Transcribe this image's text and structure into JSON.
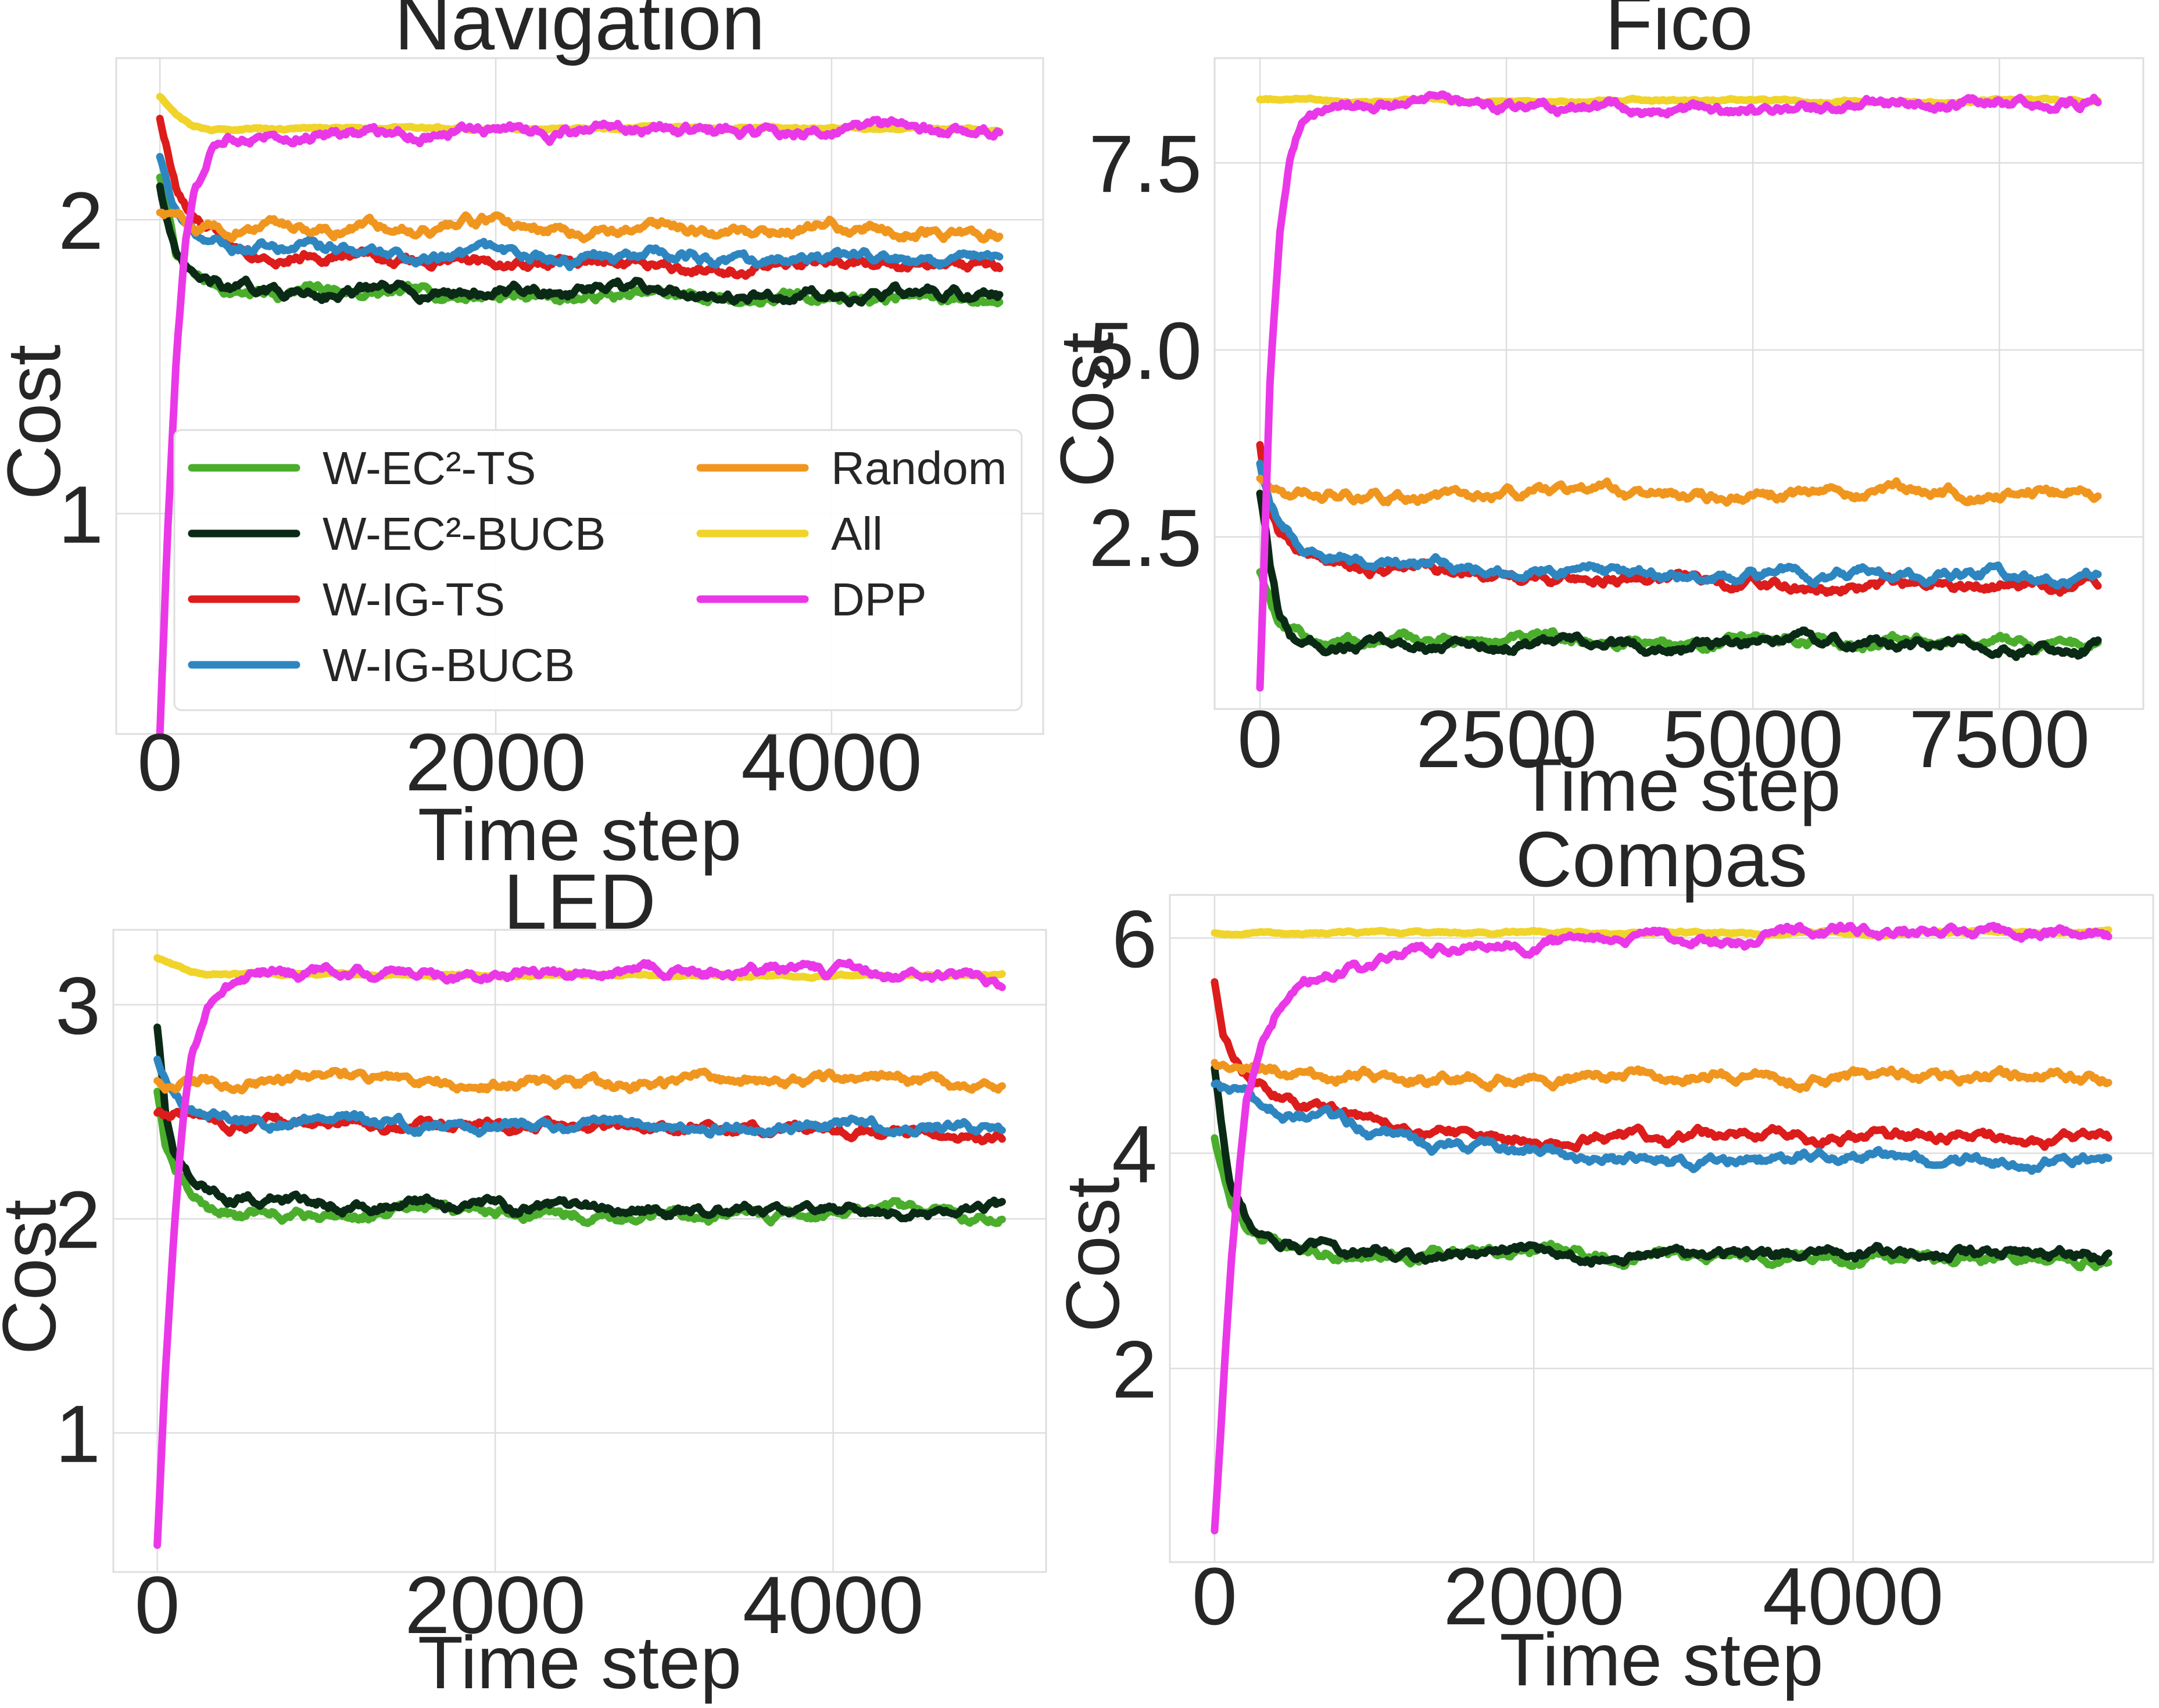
{
  "chart_data": [
    {
      "type": "line",
      "title": "Navigation",
      "xlabel": "Time step",
      "ylabel": "Cost",
      "xlim": [
        -260,
        5260
      ],
      "ylim": [
        0.25,
        2.55
      ],
      "xticks": [
        0,
        2000,
        4000
      ],
      "xtick_labels": [
        "0",
        "2000",
        "4000"
      ],
      "yticks": [
        1,
        2
      ],
      "ytick_labels": [
        "1",
        "2"
      ],
      "grid": true,
      "series": [
        {
          "name": "W-EC²-TS",
          "x": [
            0,
            100,
            200,
            400,
            700,
            1000,
            1500,
            2000,
            2500,
            3000,
            3500,
            4000,
            4500,
            5000
          ],
          "values": [
            2.15,
            1.88,
            1.8,
            1.76,
            1.75,
            1.76,
            1.74,
            1.75,
            1.74,
            1.74,
            1.73,
            1.74,
            1.74,
            1.73
          ]
        },
        {
          "name": "W-EC²-BUCB",
          "x": [
            0,
            100,
            200,
            400,
            700,
            1000,
            1500,
            2000,
            2500,
            3000,
            3500,
            4000,
            4500,
            5000
          ],
          "values": [
            2.12,
            1.86,
            1.79,
            1.76,
            1.75,
            1.76,
            1.75,
            1.76,
            1.75,
            1.76,
            1.74,
            1.75,
            1.75,
            1.73
          ]
        },
        {
          "name": "W-IG-TS",
          "x": [
            0,
            100,
            200,
            400,
            700,
            1000,
            1500,
            2000,
            2500,
            3000,
            3500,
            4000,
            4500,
            5000
          ],
          "values": [
            2.35,
            2.1,
            1.99,
            1.92,
            1.89,
            1.89,
            1.86,
            1.86,
            1.85,
            1.86,
            1.84,
            1.85,
            1.84,
            1.83
          ]
        },
        {
          "name": "W-IG-BUCB",
          "x": [
            0,
            100,
            200,
            400,
            700,
            1000,
            1500,
            2000,
            2500,
            3000,
            3500,
            4000,
            4500,
            5000
          ],
          "values": [
            2.22,
            2.04,
            1.96,
            1.92,
            1.9,
            1.9,
            1.87,
            1.87,
            1.86,
            1.88,
            1.85,
            1.86,
            1.86,
            1.85
          ]
        },
        {
          "name": "Random",
          "x": [
            0,
            100,
            200,
            400,
            700,
            1000,
            1500,
            2000,
            2500,
            3000,
            3500,
            4000,
            4500,
            5000
          ],
          "values": [
            2.03,
            2.0,
            1.98,
            1.97,
            1.98,
            1.97,
            1.98,
            1.99,
            1.97,
            1.98,
            1.96,
            1.98,
            1.97,
            1.95
          ]
        },
        {
          "name": "All",
          "x": [
            0,
            100,
            200,
            300,
            500,
            700,
            1000,
            2000,
            3000,
            4000,
            5000
          ],
          "values": [
            2.42,
            2.36,
            2.32,
            2.31,
            2.31,
            2.31,
            2.31,
            2.31,
            2.31,
            2.31,
            2.31
          ]
        },
        {
          "name": "DPP",
          "x": [
            0,
            50,
            100,
            150,
            200,
            300,
            400,
            500,
            700,
            1000,
            1500,
            2000,
            3000,
            4000,
            5000
          ],
          "values": [
            0.25,
            1.0,
            1.55,
            1.9,
            2.08,
            2.22,
            2.27,
            2.29,
            2.3,
            2.31,
            2.3,
            2.3,
            2.3,
            2.3,
            2.3
          ]
        }
      ],
      "legend": {
        "position": "lower-left",
        "columns": 2,
        "entries": [
          "W-EC²-TS",
          "W-EC²-BUCB",
          "W-IG-TS",
          "W-IG-BUCB",
          "Random",
          "All",
          "DPP"
        ]
      }
    },
    {
      "type": "line",
      "title": "Fico",
      "xlabel": "Time step",
      "ylabel": "Cost",
      "xlim": [
        -460,
        8960
      ],
      "ylim": [
        0.2,
        8.9
      ],
      "xticks": [
        0,
        2500,
        5000,
        7500
      ],
      "xtick_labels": [
        "0",
        "2500",
        "5000",
        "7500"
      ],
      "yticks": [
        2.5,
        5.0,
        7.5
      ],
      "ytick_labels": [
        "2.5",
        "5.0",
        "7.5"
      ],
      "grid": true,
      "series": [
        {
          "name": "W-EC²-TS",
          "x": [
            0,
            100,
            200,
            300,
            500,
            800,
            1500,
            2500,
            3500,
            4500,
            5500,
            6500,
            7500,
            8500
          ],
          "values": [
            2.05,
            1.7,
            1.3,
            1.17,
            1.12,
            1.1,
            1.1,
            1.1,
            1.09,
            1.08,
            1.1,
            1.12,
            1.1,
            1.1
          ]
        },
        {
          "name": "W-EC²-BUCB",
          "x": [
            0,
            100,
            200,
            300,
            500,
            800,
            1500,
            2500,
            3500,
            4500,
            5500,
            6500,
            7500,
            8500
          ],
          "values": [
            3.1,
            2.1,
            1.4,
            1.15,
            1.08,
            1.06,
            1.05,
            1.06,
            1.04,
            1.05,
            1.05,
            1.07,
            1.05,
            1.05
          ]
        },
        {
          "name": "W-IG-TS",
          "x": [
            0,
            100,
            200,
            400,
            700,
            1000,
            1500,
            2500,
            3500,
            4500,
            5500,
            6500,
            7500,
            8500
          ],
          "values": [
            3.75,
            2.9,
            2.55,
            2.3,
            2.15,
            2.1,
            2.05,
            1.95,
            1.95,
            1.9,
            1.85,
            1.85,
            1.85,
            1.85
          ]
        },
        {
          "name": "W-IG-BUCB",
          "x": [
            0,
            100,
            200,
            400,
            700,
            1000,
            1500,
            2500,
            3500,
            4500,
            5500,
            6500,
            7500,
            8500
          ],
          "values": [
            3.5,
            2.9,
            2.6,
            2.35,
            2.3,
            2.2,
            2.15,
            2.1,
            2.05,
            2.0,
            2.0,
            2.0,
            1.98,
            1.97
          ]
        },
        {
          "name": "Random",
          "x": [
            0,
            100,
            200,
            400,
            1000,
            2000,
            3000,
            4000,
            5000,
            6000,
            7000,
            8000,
            8500
          ],
          "values": [
            3.3,
            3.2,
            3.1,
            3.05,
            3.05,
            3.05,
            3.1,
            3.05,
            3.05,
            3.1,
            3.1,
            3.1,
            3.1
          ]
        },
        {
          "name": "All",
          "x": [
            0,
            1000,
            2000,
            3000,
            4000,
            5000,
            6000,
            7000,
            8000,
            8500
          ],
          "values": [
            8.35,
            8.33,
            8.33,
            8.33,
            8.33,
            8.33,
            8.33,
            8.33,
            8.33,
            8.33
          ]
        },
        {
          "name": "DPP",
          "x": [
            0,
            50,
            100,
            200,
            300,
            400,
            500,
            600,
            800,
            1200,
            2000,
            3000,
            4000,
            5000,
            6000,
            6300,
            7000,
            8000,
            8500
          ],
          "values": [
            0.5,
            2.5,
            4.5,
            6.6,
            7.6,
            8.05,
            8.2,
            8.25,
            8.27,
            8.28,
            8.25,
            8.23,
            8.2,
            8.22,
            8.22,
            8.3,
            8.31,
            8.31,
            8.31
          ]
        }
      ]
    },
    {
      "type": "line",
      "title": "LED",
      "xlabel": "Time step",
      "ylabel": "Cost",
      "xlim": [
        -260,
        5260
      ],
      "ylim": [
        0.35,
        3.35
      ],
      "xticks": [
        0,
        2000,
        4000
      ],
      "xtick_labels": [
        "0",
        "2000",
        "4000"
      ],
      "yticks": [
        1,
        2,
        3
      ],
      "ytick_labels": [
        "1",
        "2",
        "3"
      ],
      "grid": true,
      "series": [
        {
          "name": "W-EC²-TS",
          "x": [
            0,
            50,
            100,
            200,
            300,
            500,
            800,
            1200,
            2000,
            3000,
            4000,
            5000
          ],
          "values": [
            2.6,
            2.35,
            2.22,
            2.1,
            2.05,
            2.02,
            2.02,
            2.03,
            2.03,
            2.02,
            2.02,
            2.01
          ]
        },
        {
          "name": "W-EC²-BUCB",
          "x": [
            0,
            50,
            100,
            200,
            300,
            500,
            800,
            1200,
            2000,
            3000,
            4000,
            5000
          ],
          "values": [
            2.9,
            2.5,
            2.3,
            2.17,
            2.12,
            2.1,
            2.09,
            2.08,
            2.05,
            2.03,
            2.03,
            2.03
          ]
        },
        {
          "name": "W-IG-TS",
          "x": [
            0,
            200,
            500,
            1000,
            2000,
            3000,
            4000,
            5000
          ],
          "values": [
            2.5,
            2.48,
            2.45,
            2.42,
            2.43,
            2.42,
            2.42,
            2.4
          ]
        },
        {
          "name": "W-IG-BUCB",
          "x": [
            0,
            100,
            200,
            500,
            1000,
            2000,
            3000,
            4000,
            5000
          ],
          "values": [
            2.75,
            2.6,
            2.52,
            2.47,
            2.44,
            2.43,
            2.43,
            2.44,
            2.41
          ]
        },
        {
          "name": "Random",
          "x": [
            0,
            500,
            1000,
            2000,
            3000,
            4000,
            5000
          ],
          "values": [
            2.65,
            2.64,
            2.66,
            2.64,
            2.63,
            2.65,
            2.63
          ]
        },
        {
          "name": "All",
          "x": [
            0,
            100,
            200,
            300,
            500,
            1000,
            2000,
            3000,
            4000,
            5000
          ],
          "values": [
            3.22,
            3.18,
            3.15,
            3.14,
            3.14,
            3.14,
            3.14,
            3.14,
            3.14,
            3.14
          ]
        },
        {
          "name": "DPP",
          "x": [
            0,
            50,
            100,
            150,
            200,
            300,
            400,
            600,
            800,
            1000,
            2000,
            3000,
            4000,
            5000
          ],
          "values": [
            0.48,
            1.3,
            1.95,
            2.45,
            2.75,
            3.0,
            3.1,
            3.15,
            3.15,
            3.15,
            3.15,
            3.15,
            3.15,
            3.12
          ]
        }
      ]
    },
    {
      "type": "line",
      "title": "Compas",
      "xlabel": "Time step",
      "ylabel": "Cost",
      "xlim": [
        -280,
        5880
      ],
      "ylim": [
        0.2,
        6.4
      ],
      "xticks": [
        0,
        2000,
        4000
      ],
      "xtick_labels": [
        "0",
        "2000",
        "4000"
      ],
      "yticks": [
        2,
        4,
        6
      ],
      "ytick_labels": [
        "2",
        "4",
        "6"
      ],
      "grid": true,
      "series": [
        {
          "name": "W-EC²-TS",
          "x": [
            0,
            50,
            100,
            200,
            300,
            500,
            800,
            1200,
            2000,
            3000,
            4000,
            5000,
            5600
          ],
          "values": [
            4.15,
            3.8,
            3.5,
            3.3,
            3.2,
            3.15,
            3.08,
            3.05,
            3.05,
            3.03,
            3.03,
            3.02,
            3.05
          ]
        },
        {
          "name": "W-EC²-BUCB",
          "x": [
            0,
            50,
            100,
            200,
            300,
            500,
            800,
            1200,
            2000,
            3000,
            4000,
            5000,
            5600
          ],
          "values": [
            4.8,
            4.2,
            3.7,
            3.38,
            3.25,
            3.15,
            3.1,
            3.05,
            3.08,
            3.05,
            3.05,
            3.05,
            3.05
          ]
        },
        {
          "name": "W-IG-TS",
          "x": [
            0,
            50,
            100,
            200,
            400,
            700,
            1000,
            1500,
            2000,
            3000,
            4000,
            5000,
            5600
          ],
          "values": [
            5.6,
            5.1,
            4.9,
            4.7,
            4.55,
            4.4,
            4.3,
            4.2,
            4.15,
            4.15,
            4.15,
            4.15,
            4.15
          ]
        },
        {
          "name": "W-IG-BUCB",
          "x": [
            0,
            100,
            200,
            400,
            700,
            1000,
            1500,
            2000,
            2500,
            3000,
            3500,
            4000,
            4500,
            5000,
            5600
          ],
          "values": [
            4.65,
            4.55,
            4.5,
            4.4,
            4.3,
            4.2,
            4.05,
            4.0,
            3.95,
            3.9,
            3.95,
            4.0,
            3.95,
            3.9,
            4.0
          ]
        },
        {
          "name": "Random",
          "x": [
            0,
            200,
            500,
            1000,
            2000,
            3000,
            4000,
            5000,
            5600
          ],
          "values": [
            4.85,
            4.8,
            4.75,
            4.72,
            4.7,
            4.72,
            4.72,
            4.72,
            4.7
          ]
        },
        {
          "name": "All",
          "x": [
            0,
            1000,
            2000,
            3000,
            4000,
            5000,
            5600
          ],
          "values": [
            6.05,
            6.05,
            6.05,
            6.05,
            6.05,
            6.05,
            6.05
          ]
        },
        {
          "name": "DPP",
          "x": [
            0,
            50,
            100,
            150,
            200,
            300,
            400,
            500,
            700,
            1000,
            1300,
            1500,
            2000,
            3000,
            3400,
            3500,
            4000,
            5000,
            5600
          ],
          "values": [
            0.5,
            1.7,
            2.9,
            3.8,
            4.45,
            5.1,
            5.4,
            5.55,
            5.65,
            5.75,
            5.88,
            5.95,
            5.96,
            5.96,
            5.95,
            6.05,
            6.06,
            6.06,
            6.06
          ]
        }
      ]
    }
  ],
  "colors": {
    "W-EC²-TS": "#4aae2c",
    "W-EC²-BUCB": "#0b2a16",
    "W-IG-TS": "#dd1c1c",
    "W-IG-BUCB": "#2e86c1",
    "Random": "#f0961f",
    "All": "#f0d42a",
    "DPP": "#ea38e8",
    "grid": "#dedede",
    "axis_text": "#262626"
  }
}
